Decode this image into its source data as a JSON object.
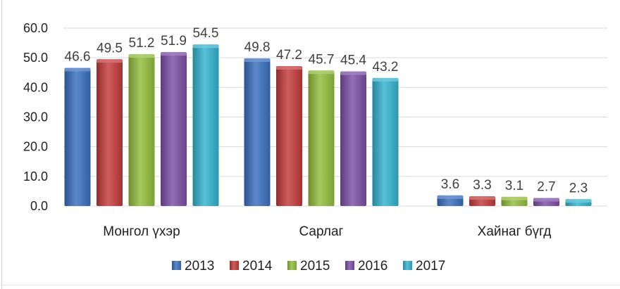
{
  "chart_data": {
    "type": "bar",
    "categories": [
      "Монгол үхэр",
      "Сарлаг",
      "Хайнаг бүгд"
    ],
    "series": [
      {
        "name": "2013",
        "values": [
          46.6,
          49.8,
          3.6
        ],
        "color": "#3a6fc0"
      },
      {
        "name": "2014",
        "values": [
          49.5,
          47.2,
          3.3
        ],
        "color": "#c43a3a"
      },
      {
        "name": "2015",
        "values": [
          51.2,
          45.7,
          3.1
        ],
        "color": "#92bd3c"
      },
      {
        "name": "2016",
        "values": [
          51.9,
          45.4,
          2.7
        ],
        "color": "#7c4ea6"
      },
      {
        "name": "2017",
        "values": [
          54.5,
          43.2,
          2.3
        ],
        "color": "#33b3cf"
      }
    ],
    "yticks": [
      "0.0",
      "10.0",
      "20.0",
      "30.0",
      "40.0",
      "50.0",
      "60.0"
    ],
    "ylim": [
      0,
      60
    ],
    "grid": true,
    "legend": "bottom"
  }
}
